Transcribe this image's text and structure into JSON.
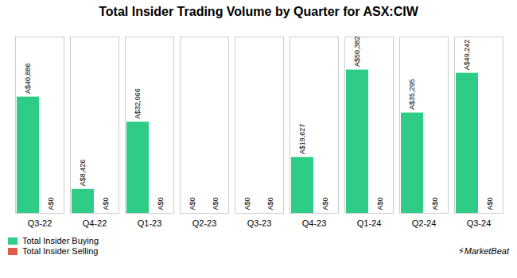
{
  "chart_data": {
    "type": "bar",
    "title": "Total Insider Trading Volume by Quarter for ASX:CIW",
    "categories": [
      "Q3-22",
      "Q4-22",
      "Q1-23",
      "Q2-23",
      "Q3-23",
      "Q4-23",
      "Q1-24",
      "Q2-24",
      "Q3-24"
    ],
    "series": [
      {
        "name": "Total Insider Buying",
        "color": "#2ecc87",
        "values": [
          40886,
          8426,
          32066,
          0,
          0,
          19627,
          50382,
          35295,
          49242
        ],
        "value_labels": [
          "A$40,886",
          "A$8,426",
          "A$32,066",
          "A$0",
          "A$0",
          "A$19,627",
          "A$50,382",
          "A$35,295",
          "A$49,242"
        ]
      },
      {
        "name": "Total Insider Selling",
        "color": "#e05c4b",
        "values": [
          0,
          0,
          0,
          0,
          0,
          0,
          0,
          0,
          0
        ],
        "value_labels": [
          "A$0",
          "A$0",
          "A$0",
          "A$0",
          "A$0",
          "A$0",
          "A$0",
          "A$0",
          "A$0"
        ]
      }
    ],
    "ylim": [
      0,
      62000
    ],
    "data_labels": true,
    "tick_labels": "x",
    "grid": false,
    "legend": "lower left",
    "annotations": [
      {
        "text": "⚡MarketBeat"
      }
    ]
  }
}
